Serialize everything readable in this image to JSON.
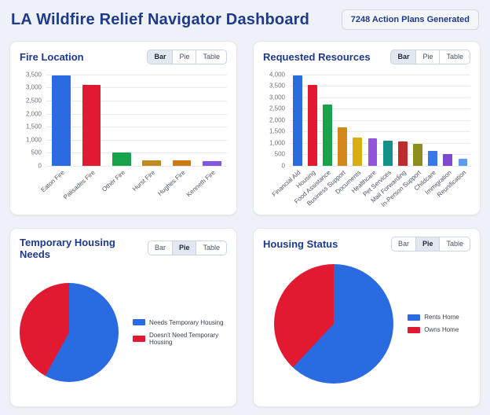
{
  "header": {
    "title": "LA Wildfire Relief Navigator Dashboard",
    "badge": "7248 Action Plans Generated"
  },
  "toggle_labels": {
    "bar": "Bar",
    "pie": "Pie",
    "table": "Table"
  },
  "panels": [
    {
      "title": "Fire Location",
      "active_view": "Bar"
    },
    {
      "title": "Requested Resources",
      "active_view": "Bar"
    },
    {
      "title": "Temporary Housing Needs",
      "active_view": "Pie"
    },
    {
      "title": "Housing Status",
      "active_view": "Pie"
    }
  ],
  "chart_data": [
    {
      "type": "bar",
      "title": "Fire Location",
      "categories": [
        "Eaton Fire",
        "Palisades Fire",
        "Other Fire",
        "Hurst Fire",
        "Hughes Fire",
        "Kenneth Fire"
      ],
      "values": [
        3450,
        3100,
        520,
        220,
        200,
        190
      ],
      "colors": [
        "#2a6be2",
        "#e11931",
        "#16a34a",
        "#c08a1f",
        "#cc7a14",
        "#8455e0"
      ],
      "ylim": [
        0,
        3500
      ],
      "ytick": 500,
      "grid": true,
      "legend": "none"
    },
    {
      "type": "bar",
      "title": "Requested Resources",
      "categories": [
        "Financial Aid",
        "Housing",
        "Food Assistance",
        "Business Support",
        "Documents",
        "Healthcare",
        "Pet Services",
        "Mail Forwarding",
        "In-Person Support",
        "Childcare",
        "Immigration",
        "Reunification"
      ],
      "values": [
        3950,
        3550,
        2700,
        1700,
        1250,
        1200,
        1100,
        1050,
        950,
        650,
        500,
        300
      ],
      "colors": [
        "#2a6be2",
        "#e11931",
        "#16a34a",
        "#d4881c",
        "#d4b012",
        "#9355dd",
        "#149189",
        "#c22b2b",
        "#8c8f1d",
        "#3b77e8",
        "#7e49cf",
        "#5e9bee"
      ],
      "ylim": [
        0,
        4000
      ],
      "ytick": 500,
      "grid": true,
      "legend": "none"
    },
    {
      "type": "pie",
      "title": "Temporary Housing Needs",
      "labels": [
        "Needs Temporary Housing",
        "Doesn't Need Temporary Housing"
      ],
      "values": [
        58,
        42
      ],
      "unit": "percent",
      "colors": [
        "#2a6be2",
        "#e11931"
      ],
      "legend_position": "right",
      "start_angle": "top"
    },
    {
      "type": "pie",
      "title": "Housing Status",
      "labels": [
        "Rents Home",
        "Owns Home"
      ],
      "values": [
        62,
        38
      ],
      "unit": "percent",
      "colors": [
        "#2a6be2",
        "#e11931"
      ],
      "legend_position": "right",
      "start_angle": "top"
    }
  ]
}
